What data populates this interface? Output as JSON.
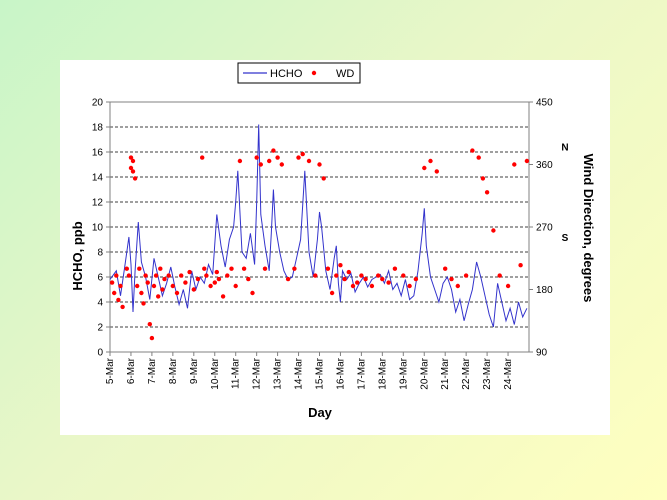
{
  "chart_data": {
    "type": "line",
    "title": "",
    "xlabel": "Day",
    "ylabel": "HCHO, ppb",
    "y2label": "Wind Direction, degrees",
    "ylim": [
      0,
      20
    ],
    "y2lim": [
      90,
      450
    ],
    "yticks": [
      "0",
      "2",
      "4",
      "6",
      "8",
      "10",
      "12",
      "14",
      "16",
      "18",
      "20"
    ],
    "y2ticks": [
      "90",
      "180",
      "270",
      "360",
      "450"
    ],
    "categories": [
      "5-Mar",
      "6-Mar",
      "7-Mar",
      "8-Mar",
      "9-Mar",
      "10-Mar",
      "11-Mar",
      "12-Mar",
      "13-Mar",
      "14-Mar",
      "15-Mar",
      "16-Mar",
      "17-Mar",
      "18-Mar",
      "19-Mar",
      "20-Mar",
      "21-Mar",
      "22-Mar",
      "23-Mar",
      "24-Mar"
    ],
    "y2_markers": [
      {
        "label": "N",
        "value": 360
      },
      {
        "label": "S",
        "value": 270
      }
    ],
    "grid": "horizontal dashed",
    "legend_position": "top",
    "series": [
      {
        "name": "HCHO",
        "axis": "left",
        "style": "line",
        "color": "#3333cc",
        "x": [
          0,
          0.3,
          0.5,
          0.7,
          0.9,
          1.0,
          1.1,
          1.2,
          1.35,
          1.5,
          1.7,
          1.9,
          2.1,
          2.3,
          2.5,
          2.7,
          2.9,
          3.1,
          3.3,
          3.5,
          3.7,
          3.9,
          4.1,
          4.3,
          4.5,
          4.7,
          4.9,
          5.1,
          5.3,
          5.5,
          5.7,
          5.9,
          6.0,
          6.1,
          6.3,
          6.5,
          6.7,
          6.9,
          7.0,
          7.1,
          7.2,
          7.4,
          7.6,
          7.7,
          7.8,
          7.9,
          8.0,
          8.1,
          8.3,
          8.5,
          8.7,
          8.9,
          9.1,
          9.3,
          9.5,
          9.7,
          9.9,
          10.0,
          10.1,
          10.3,
          10.5,
          10.7,
          10.8,
          10.9,
          11.0,
          11.1,
          11.3,
          11.5,
          11.7,
          11.9,
          12.1,
          12.3,
          12.5,
          12.7,
          12.9,
          13.1,
          13.3,
          13.5,
          13.7,
          13.9,
          14.1,
          14.3,
          14.5,
          14.7,
          14.9,
          15.0,
          15.1,
          15.3,
          15.5,
          15.7,
          15.9,
          16.1,
          16.3,
          16.5,
          16.7,
          16.9,
          17.1,
          17.3,
          17.5,
          17.7,
          17.9,
          18.1,
          18.3,
          18.5,
          18.7,
          18.9,
          19.1,
          19.3,
          19.5,
          19.7,
          19.9
        ],
        "values": [
          5.8,
          6.5,
          4.5,
          6.8,
          9.2,
          7.0,
          3.2,
          6.5,
          10.4,
          7.2,
          6.0,
          4.2,
          7.5,
          6.0,
          4.5,
          5.5,
          6.8,
          5.2,
          3.8,
          5.0,
          3.5,
          6.5,
          5.0,
          6.0,
          5.5,
          7.0,
          6.2,
          11.0,
          8.5,
          6.8,
          9.0,
          10.0,
          12.0,
          14.5,
          8.0,
          7.5,
          9.5,
          7.0,
          12.0,
          18.2,
          11.0,
          8.5,
          6.5,
          9.5,
          13.0,
          10.0,
          9.0,
          8.0,
          6.5,
          5.8,
          6.0,
          7.5,
          9.0,
          14.5,
          8.0,
          6.0,
          9.0,
          11.2,
          10.0,
          6.5,
          5.0,
          7.5,
          8.5,
          5.5,
          4.0,
          6.5,
          5.8,
          6.3,
          4.8,
          5.5,
          6.0,
          5.2,
          5.8,
          6.0,
          6.2,
          5.5,
          6.5,
          5.0,
          5.5,
          4.5,
          5.8,
          4.2,
          4.5,
          6.5,
          9.5,
          11.5,
          8.5,
          6.0,
          5.0,
          4.0,
          5.5,
          6.0,
          5.0,
          3.2,
          4.2,
          2.5,
          3.8,
          5.0,
          7.2,
          6.0,
          4.5,
          3.0,
          2.0,
          5.5,
          4.0,
          2.5,
          3.5,
          2.2,
          4.0,
          2.8,
          3.5
        ]
      },
      {
        "name": "WD",
        "axis": "right",
        "style": "scatter",
        "color": "#ff0000",
        "x": [
          0.1,
          0.2,
          0.3,
          0.4,
          0.5,
          0.6,
          0.8,
          0.9,
          1.0,
          1.0,
          1.1,
          1.1,
          1.2,
          1.3,
          1.4,
          1.5,
          1.6,
          1.7,
          1.8,
          1.9,
          2.0,
          2.1,
          2.2,
          2.3,
          2.4,
          2.5,
          2.6,
          2.8,
          3.0,
          3.2,
          3.4,
          3.6,
          3.8,
          4.0,
          4.2,
          4.4,
          4.5,
          4.6,
          4.8,
          5.0,
          5.1,
          5.2,
          5.4,
          5.6,
          5.8,
          6.0,
          6.2,
          6.4,
          6.6,
          6.8,
          7.0,
          7.2,
          7.4,
          7.6,
          7.8,
          8.0,
          8.2,
          8.5,
          8.8,
          9.0,
          9.2,
          9.5,
          9.8,
          10.0,
          10.2,
          10.4,
          10.6,
          10.8,
          11.0,
          11.2,
          11.4,
          11.6,
          11.8,
          12.0,
          12.2,
          12.5,
          12.8,
          13.0,
          13.3,
          13.6,
          14.0,
          14.3,
          14.6,
          15.0,
          15.3,
          15.6,
          16.0,
          16.3,
          16.6,
          17.0,
          17.3,
          17.6,
          17.8,
          18.0,
          18.3,
          18.6,
          19.0,
          19.3,
          19.6,
          19.9
        ],
        "values": [
          190,
          175,
          200,
          165,
          185,
          155,
          210,
          200,
          355,
          370,
          350,
          365,
          340,
          185,
          210,
          175,
          160,
          200,
          190,
          130,
          110,
          185,
          200,
          170,
          210,
          180,
          195,
          200,
          185,
          175,
          200,
          190,
          205,
          180,
          195,
          370,
          210,
          200,
          185,
          190,
          205,
          195,
          170,
          200,
          210,
          185,
          365,
          210,
          195,
          175,
          370,
          360,
          210,
          365,
          380,
          370,
          360,
          195,
          210,
          370,
          375,
          365,
          200,
          360,
          340,
          210,
          175,
          200,
          215,
          195,
          205,
          185,
          190,
          200,
          195,
          185,
          200,
          195,
          190,
          210,
          200,
          185,
          195,
          355,
          365,
          350,
          210,
          195,
          185,
          200,
          380,
          370,
          340,
          320,
          265,
          200,
          185,
          360,
          215,
          365
        ]
      }
    ]
  }
}
